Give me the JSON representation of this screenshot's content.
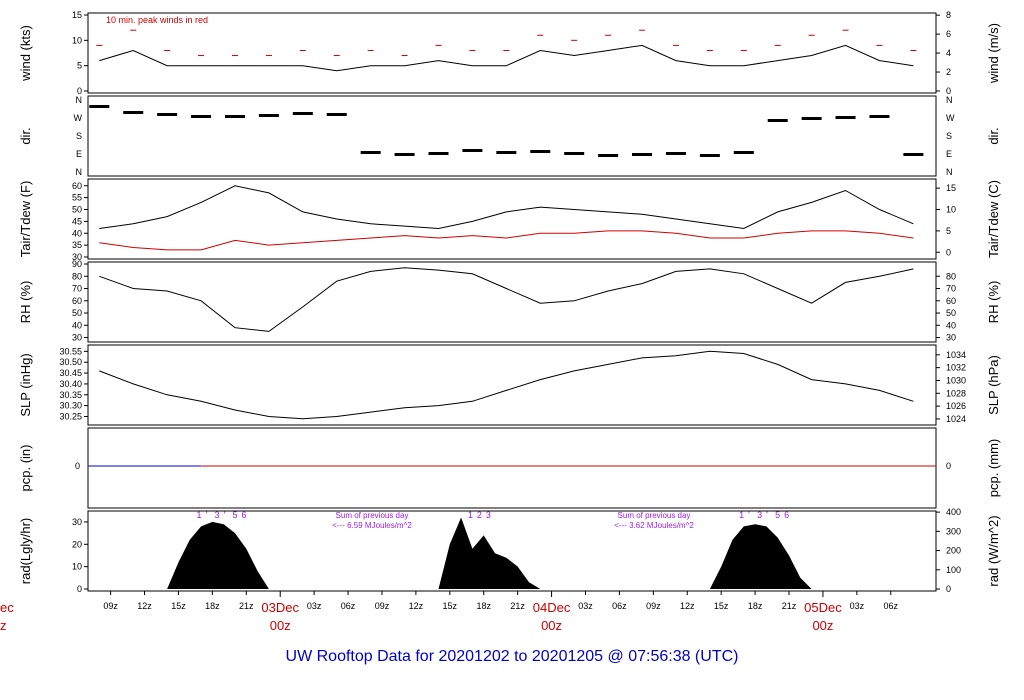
{
  "title": "UW Rooftop Data for 20201202  to  20201205 @ 07:56:38  (UTC)",
  "colors": {
    "primary": "#000000",
    "dewpoint": "#d00000",
    "peak": "#d00000",
    "precip_blue": "#0000cc",
    "annotation": "#a020f0",
    "date_label": "#d00000",
    "footer": "#0000cc"
  },
  "time_axis": {
    "hour_ticks": [
      "09z",
      "12z",
      "15z",
      "18z",
      "21z",
      "03z",
      "06z",
      "09z",
      "12z",
      "15z",
      "18z",
      "21z",
      "03z",
      "06z",
      "09z",
      "12z",
      "15z",
      "18z",
      "21z",
      "03z",
      "06z"
    ],
    "date_labels": [
      {
        "date": "03Dec",
        "hour": "00z"
      },
      {
        "date": "04Dec",
        "hour": "00z"
      },
      {
        "date": "05Dec",
        "hour": "00z"
      }
    ],
    "partial_left": {
      "date": "ec",
      "hour": "z"
    }
  },
  "chart_data": [
    {
      "type": "line",
      "panel": "wind",
      "ylabel_left": "wind (kts)",
      "ylabel_right": "wind (m/s)",
      "ylim": [
        0,
        15
      ],
      "yticks_left": [
        "0",
        "5",
        "10",
        "15"
      ],
      "yticks_right": [
        "0",
        "2",
        "4",
        "6",
        "8"
      ],
      "annotation": "10 min. peak winds in red",
      "x_hours": [
        0,
        3,
        6,
        9,
        12,
        15,
        18,
        21,
        24,
        27,
        30,
        33,
        36,
        39,
        42,
        45,
        48,
        51,
        54,
        57,
        60,
        63,
        66,
        69,
        72
      ],
      "series": [
        {
          "values": [
            6,
            8,
            5,
            5,
            5,
            5,
            5,
            4,
            5,
            5,
            6,
            5,
            5,
            8,
            7,
            8,
            9,
            6,
            5,
            5,
            6,
            7,
            9,
            6,
            5
          ]
        },
        {
          "values": [
            9,
            12,
            8,
            7,
            7,
            7,
            8,
            7,
            8,
            7,
            9,
            8,
            8,
            11,
            10,
            11,
            12,
            9,
            8,
            8,
            9,
            11,
            12,
            9,
            8
          ]
        }
      ]
    },
    {
      "type": "scatter",
      "panel": "dir",
      "ylabel_left": "dir.",
      "ylabel_right": "dir.",
      "yticks": [
        "N",
        "E",
        "S",
        "W",
        "N"
      ],
      "x_hours": [
        0,
        3,
        6,
        9,
        12,
        15,
        18,
        21,
        24,
        27,
        30,
        33,
        36,
        39,
        42,
        45,
        48,
        51,
        54,
        57,
        60,
        63,
        66,
        69,
        72
      ],
      "values": [
        330,
        300,
        290,
        280,
        280,
        285,
        295,
        290,
        100,
        90,
        95,
        110,
        100,
        105,
        95,
        85,
        90,
        95,
        85,
        100,
        260,
        270,
        275,
        280,
        90
      ]
    },
    {
      "type": "line",
      "panel": "temp",
      "ylabel_left": "Tair/Tdew (F)",
      "ylabel_right": "Tair/Tdew (C)",
      "ylim": [
        30,
        62
      ],
      "yticks_left": [
        "30",
        "35",
        "40",
        "45",
        "50",
        "55",
        "60"
      ],
      "yticks_right": [
        "0",
        "5",
        "10",
        "15"
      ],
      "x_hours": [
        0,
        3,
        6,
        9,
        12,
        15,
        18,
        21,
        24,
        27,
        30,
        33,
        36,
        39,
        42,
        45,
        48,
        51,
        54,
        57,
        60,
        63,
        66,
        69,
        72
      ],
      "series": [
        {
          "values": [
            42,
            44,
            47,
            53,
            60,
            57,
            49,
            46,
            44,
            43,
            42,
            45,
            49,
            51,
            50,
            49,
            48,
            46,
            44,
            42,
            49,
            53,
            58,
            50,
            44
          ]
        },
        {
          "values": [
            36,
            34,
            33,
            33,
            37,
            35,
            36,
            37,
            38,
            39,
            38,
            39,
            38,
            40,
            40,
            41,
            41,
            40,
            38,
            38,
            40,
            41,
            41,
            40,
            38
          ]
        }
      ]
    },
    {
      "type": "line",
      "panel": "rh",
      "ylabel_left": "RH (%)",
      "ylabel_right": "RH (%)",
      "ylim": [
        28,
        90
      ],
      "yticks_left": [
        "30",
        "40",
        "50",
        "60",
        "70",
        "80",
        "90"
      ],
      "yticks_right": [
        "30",
        "40",
        "50",
        "60",
        "70",
        "80"
      ],
      "x_hours": [
        0,
        3,
        6,
        9,
        12,
        15,
        18,
        21,
        24,
        27,
        30,
        33,
        36,
        39,
        42,
        45,
        48,
        51,
        54,
        57,
        60,
        63,
        66,
        69,
        72
      ],
      "values": [
        80,
        70,
        68,
        60,
        38,
        35,
        55,
        76,
        84,
        87,
        85,
        82,
        70,
        58,
        60,
        68,
        74,
        84,
        86,
        82,
        70,
        58,
        75,
        80,
        86
      ]
    },
    {
      "type": "line",
      "panel": "slp",
      "ylabel_left": "SLP (inHg)",
      "ylabel_right": "SLP (hPa)",
      "ylim": [
        30.22,
        30.57
      ],
      "yticks_left": [
        "30.25",
        "30.30",
        "30.35",
        "30.40",
        "30.45",
        "30.50",
        "30.55"
      ],
      "yticks_right": [
        "1024",
        "1026",
        "1028",
        "1030",
        "1032",
        "1034"
      ],
      "x_hours": [
        0,
        3,
        6,
        9,
        12,
        15,
        18,
        21,
        24,
        27,
        30,
        33,
        36,
        39,
        42,
        45,
        48,
        51,
        54,
        57,
        60,
        63,
        66,
        69,
        72
      ],
      "values": [
        30.46,
        30.4,
        30.35,
        30.32,
        30.28,
        30.25,
        30.24,
        30.25,
        30.27,
        30.29,
        30.3,
        30.32,
        30.37,
        30.42,
        30.46,
        30.49,
        30.52,
        30.53,
        30.55,
        30.54,
        30.49,
        30.42,
        30.4,
        30.37,
        30.32
      ]
    },
    {
      "type": "line",
      "panel": "pcp",
      "ylabel_left": "pcp. (in)",
      "ylabel_right": "pcp. (mm)",
      "yticks_left": [
        "0"
      ],
      "yticks_right": [
        "0"
      ],
      "x_hours": [
        0,
        72
      ],
      "values": [
        0,
        0
      ]
    },
    {
      "type": "area",
      "panel": "rad",
      "ylabel_left": "rad(Lgly/hr)",
      "ylabel_right": "rad (W/m^2)",
      "ylim": [
        0,
        34
      ],
      "yticks_left": [
        "0",
        "10",
        "20",
        "30"
      ],
      "yticks_right": [
        "0",
        "100",
        "200",
        "300",
        "400"
      ],
      "x_hours": [
        6,
        7,
        8,
        9,
        10,
        11,
        12,
        13,
        14,
        15,
        30,
        31,
        32,
        33,
        34,
        35,
        36,
        37,
        38,
        39,
        54,
        55,
        56,
        57,
        58,
        59,
        60,
        61,
        62,
        63
      ],
      "values": [
        0,
        12,
        22,
        28,
        30,
        29,
        25,
        18,
        8,
        0,
        0,
        20,
        32,
        18,
        24,
        16,
        14,
        10,
        3,
        0,
        0,
        10,
        22,
        28,
        29,
        28,
        23,
        15,
        5,
        0
      ],
      "hour_markers": [
        [
          "1",
          "'",
          "3",
          "'",
          "5",
          "6"
        ],
        [
          "1",
          "2",
          "3"
        ],
        [
          "1",
          "'",
          "3",
          "'",
          "5",
          "6"
        ]
      ],
      "annotations": [
        {
          "line1": "Sum of previous day",
          "line2": "<--- 6.59 MJoules/m^2"
        },
        {
          "line1": "Sum of previous day",
          "line2": "<--- 3.62 MJoules/m^2"
        }
      ]
    }
  ]
}
